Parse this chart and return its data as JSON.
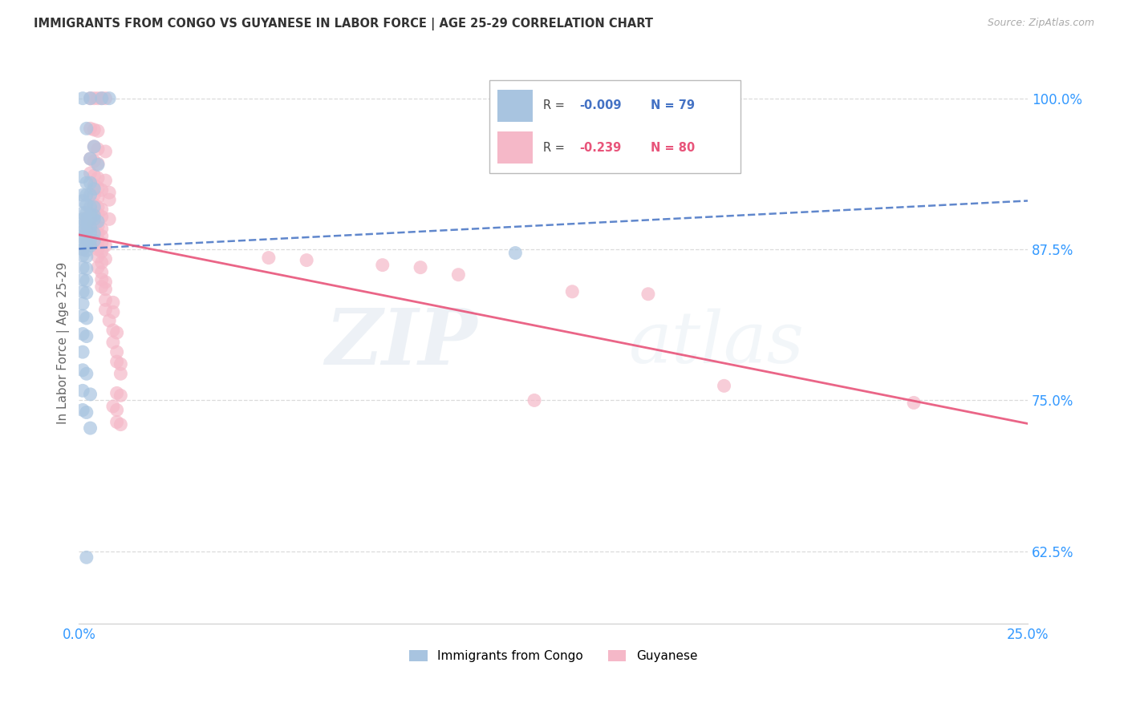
{
  "title": "IMMIGRANTS FROM CONGO VS GUYANESE IN LABOR FORCE | AGE 25-29 CORRELATION CHART",
  "source": "Source: ZipAtlas.com",
  "ylabel": "In Labor Force | Age 25-29",
  "xlim": [
    0.0,
    0.25
  ],
  "ylim": [
    0.565,
    1.03
  ],
  "xticks_bottom": [
    0.0,
    0.25
  ],
  "xtick_labels_bottom": [
    "0.0%",
    "25.0%"
  ],
  "yticks": [
    0.625,
    0.75,
    0.875,
    1.0
  ],
  "ytick_labels": [
    "62.5%",
    "75.0%",
    "87.5%",
    "100.0%"
  ],
  "bottom_legend": [
    "Immigrants from Congo",
    "Guyanese"
  ],
  "congo_color": "#a8c4e0",
  "guyanese_color": "#f5b8c8",
  "congo_line_color": "#4472c4",
  "guyanese_line_color": "#e8547a",
  "watermark_text": "ZIPatlas",
  "congo_R": "-0.009",
  "congo_N": "79",
  "guyanese_R": "-0.239",
  "guyanese_N": "80",
  "congo_points": [
    [
      0.001,
      1.0
    ],
    [
      0.003,
      1.0
    ],
    [
      0.006,
      1.0
    ],
    [
      0.008,
      1.0
    ],
    [
      0.002,
      0.975
    ],
    [
      0.004,
      0.96
    ],
    [
      0.003,
      0.95
    ],
    [
      0.005,
      0.945
    ],
    [
      0.001,
      0.935
    ],
    [
      0.002,
      0.93
    ],
    [
      0.003,
      0.93
    ],
    [
      0.004,
      0.925
    ],
    [
      0.001,
      0.92
    ],
    [
      0.002,
      0.92
    ],
    [
      0.003,
      0.92
    ],
    [
      0.001,
      0.915
    ],
    [
      0.002,
      0.912
    ],
    [
      0.003,
      0.91
    ],
    [
      0.004,
      0.91
    ],
    [
      0.001,
      0.905
    ],
    [
      0.002,
      0.905
    ],
    [
      0.003,
      0.904
    ],
    [
      0.004,
      0.903
    ],
    [
      0.001,
      0.9
    ],
    [
      0.002,
      0.9
    ],
    [
      0.003,
      0.9
    ],
    [
      0.004,
      0.9
    ],
    [
      0.005,
      0.898
    ],
    [
      0.001,
      0.895
    ],
    [
      0.002,
      0.895
    ],
    [
      0.003,
      0.893
    ],
    [
      0.001,
      0.89
    ],
    [
      0.002,
      0.89
    ],
    [
      0.003,
      0.889
    ],
    [
      0.004,
      0.888
    ],
    [
      0.001,
      0.885
    ],
    [
      0.002,
      0.884
    ],
    [
      0.003,
      0.883
    ],
    [
      0.004,
      0.882
    ],
    [
      0.001,
      0.88
    ],
    [
      0.002,
      0.879
    ],
    [
      0.003,
      0.878
    ],
    [
      0.001,
      0.875
    ],
    [
      0.002,
      0.874
    ],
    [
      0.001,
      0.87
    ],
    [
      0.002,
      0.869
    ],
    [
      0.001,
      0.86
    ],
    [
      0.002,
      0.859
    ],
    [
      0.001,
      0.85
    ],
    [
      0.002,
      0.849
    ],
    [
      0.001,
      0.84
    ],
    [
      0.002,
      0.839
    ],
    [
      0.001,
      0.83
    ],
    [
      0.001,
      0.82
    ],
    [
      0.002,
      0.818
    ],
    [
      0.001,
      0.805
    ],
    [
      0.002,
      0.803
    ],
    [
      0.001,
      0.79
    ],
    [
      0.001,
      0.775
    ],
    [
      0.002,
      0.772
    ],
    [
      0.001,
      0.758
    ],
    [
      0.003,
      0.755
    ],
    [
      0.001,
      0.742
    ],
    [
      0.002,
      0.74
    ],
    [
      0.003,
      0.727
    ],
    [
      0.002,
      0.62
    ],
    [
      0.115,
      0.872
    ]
  ],
  "guyanese_points": [
    [
      0.003,
      1.0
    ],
    [
      0.004,
      1.0
    ],
    [
      0.005,
      1.0
    ],
    [
      0.006,
      1.0
    ],
    [
      0.007,
      1.0
    ],
    [
      0.003,
      0.975
    ],
    [
      0.004,
      0.974
    ],
    [
      0.005,
      0.973
    ],
    [
      0.004,
      0.96
    ],
    [
      0.005,
      0.958
    ],
    [
      0.007,
      0.956
    ],
    [
      0.003,
      0.95
    ],
    [
      0.004,
      0.948
    ],
    [
      0.005,
      0.946
    ],
    [
      0.003,
      0.938
    ],
    [
      0.004,
      0.936
    ],
    [
      0.005,
      0.934
    ],
    [
      0.007,
      0.932
    ],
    [
      0.004,
      0.928
    ],
    [
      0.005,
      0.926
    ],
    [
      0.006,
      0.924
    ],
    [
      0.008,
      0.922
    ],
    [
      0.004,
      0.92
    ],
    [
      0.005,
      0.918
    ],
    [
      0.008,
      0.916
    ],
    [
      0.004,
      0.912
    ],
    [
      0.005,
      0.91
    ],
    [
      0.006,
      0.908
    ],
    [
      0.005,
      0.904
    ],
    [
      0.006,
      0.902
    ],
    [
      0.008,
      0.9
    ],
    [
      0.004,
      0.896
    ],
    [
      0.005,
      0.894
    ],
    [
      0.006,
      0.892
    ],
    [
      0.005,
      0.888
    ],
    [
      0.006,
      0.886
    ],
    [
      0.005,
      0.882
    ],
    [
      0.006,
      0.88
    ],
    [
      0.007,
      0.878
    ],
    [
      0.005,
      0.875
    ],
    [
      0.006,
      0.873
    ],
    [
      0.005,
      0.869
    ],
    [
      0.007,
      0.867
    ],
    [
      0.006,
      0.864
    ],
    [
      0.05,
      0.868
    ],
    [
      0.06,
      0.866
    ],
    [
      0.005,
      0.86
    ],
    [
      0.08,
      0.862
    ],
    [
      0.09,
      0.86
    ],
    [
      0.006,
      0.856
    ],
    [
      0.1,
      0.854
    ],
    [
      0.006,
      0.85
    ],
    [
      0.007,
      0.848
    ],
    [
      0.006,
      0.844
    ],
    [
      0.007,
      0.842
    ],
    [
      0.13,
      0.84
    ],
    [
      0.15,
      0.838
    ],
    [
      0.007,
      0.833
    ],
    [
      0.009,
      0.831
    ],
    [
      0.007,
      0.825
    ],
    [
      0.009,
      0.823
    ],
    [
      0.008,
      0.816
    ],
    [
      0.009,
      0.808
    ],
    [
      0.01,
      0.806
    ],
    [
      0.009,
      0.798
    ],
    [
      0.01,
      0.79
    ],
    [
      0.01,
      0.782
    ],
    [
      0.011,
      0.78
    ],
    [
      0.011,
      0.772
    ],
    [
      0.17,
      0.762
    ],
    [
      0.01,
      0.756
    ],
    [
      0.011,
      0.754
    ],
    [
      0.12,
      0.75
    ],
    [
      0.009,
      0.745
    ],
    [
      0.01,
      0.742
    ],
    [
      0.01,
      0.732
    ],
    [
      0.011,
      0.73
    ],
    [
      0.22,
      0.748
    ]
  ]
}
